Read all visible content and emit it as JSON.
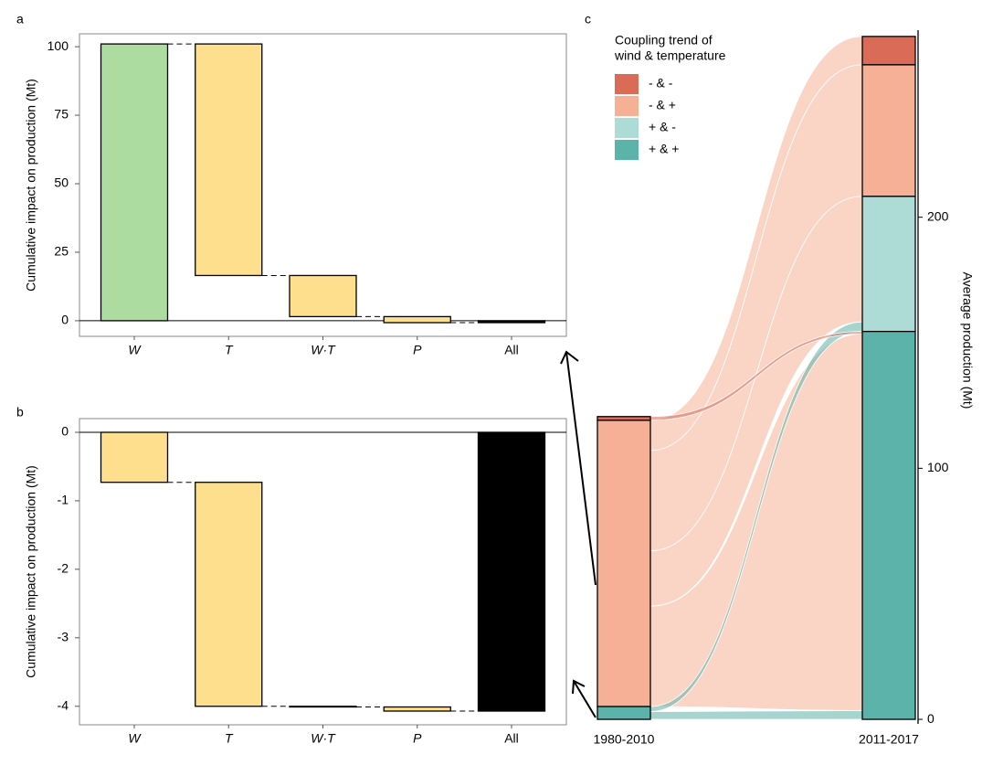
{
  "chart_data": [
    {
      "type": "waterfall",
      "label": "a",
      "y_label": "Cumulative impact on production (Mt)",
      "categories": [
        "W",
        "T",
        "W·T",
        "P",
        "All"
      ],
      "values": [
        101,
        -84.5,
        -15,
        -2.2,
        -0.7
      ],
      "colors": [
        "#acdca0",
        "#fddf8d",
        "#fddf8d",
        "#fddf8d",
        "#000000"
      ],
      "ylim": [
        -5.7,
        104.7
      ],
      "yticks": [
        0,
        25,
        50,
        75,
        100
      ]
    },
    {
      "type": "waterfall",
      "label": "b",
      "y_label": "Cumulative impact on production (Mt)",
      "categories": [
        "W",
        "T",
        "W·T",
        "P",
        "All"
      ],
      "values": [
        -0.73,
        -3.27,
        -0.01,
        -0.06,
        -4.07
      ],
      "colors": [
        "#fddf8d",
        "#fddf8d",
        "#fddf8d",
        "#fddf8d",
        "#000000"
      ],
      "ylim": [
        -4.27,
        0.2
      ],
      "yticks": [
        -4,
        -3,
        -2,
        -1,
        0
      ]
    },
    {
      "type": "alluvial",
      "label": "c",
      "legend_title": [
        "Coupling trend of",
        "wind & temperature"
      ],
      "y_label": "Average production (Mt)",
      "categories": [
        "- & -",
        "- & +",
        "+ & -",
        "+ & +"
      ],
      "colors": [
        "#d96b57",
        "#f5b096",
        "#acdcd5",
        "#5cb3aa"
      ],
      "series": [
        {
          "name": "1980-2010",
          "values": [
            1.5,
            114,
            0,
            5.1
          ]
        },
        {
          "name": "2011-2017",
          "values": [
            11.3,
            52.4,
            53.8,
            154.5
          ]
        }
      ],
      "flows": [
        {
          "from": 1,
          "to": 0,
          "values": [
            12,
            11.3
          ]
        },
        {
          "from": 1,
          "to": 1,
          "values": [
            40,
            52.4
          ]
        },
        {
          "from": 1,
          "to": 2,
          "values": [
            22,
            50
          ]
        },
        {
          "from": 1,
          "to": 3,
          "values": [
            40,
            150
          ]
        },
        {
          "from": 3,
          "to": 2,
          "values": [
            2,
            3.8
          ]
        },
        {
          "from": 3,
          "to": 3,
          "values": [
            3.1,
            3.5
          ]
        },
        {
          "from": 0,
          "to": 3,
          "values": [
            1.5,
            1
          ]
        }
      ],
      "ylim": [
        -1.8,
        274.5
      ],
      "yticks": [
        0,
        100,
        200
      ]
    }
  ]
}
